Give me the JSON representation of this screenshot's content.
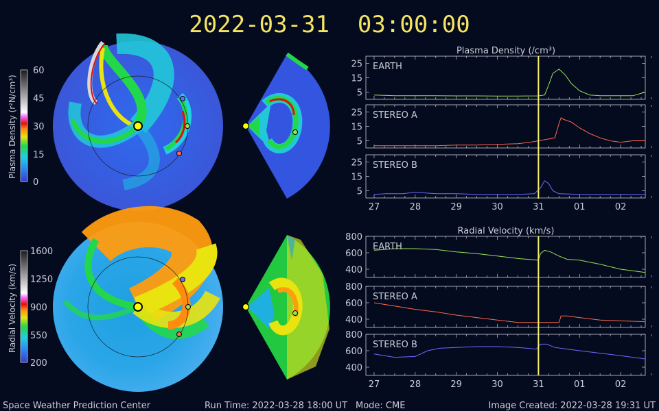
{
  "header": {
    "timestamp": "2022-03-31  03:00:00"
  },
  "colorbars": {
    "density": {
      "label": "Plasma Density (r²N/cm³)",
      "ticks": [
        "60",
        "45",
        "30",
        "15",
        "0"
      ]
    },
    "velocity": {
      "label": "Radial Velocity (km/s)",
      "ticks": [
        "1600",
        "1250",
        "900",
        "550",
        "200"
      ]
    }
  },
  "charts": {
    "density_title": "Plasma Density (/cm³)",
    "velocity_title": "Radial Velocity (km/s)"
  },
  "footer": {
    "center": "Space Weather Prediction Center",
    "run_time": "Run Time: 2022-03-28 18:00 UT",
    "mode": "Mode: CME",
    "created": "Image Created: 2022-03-28 19:31 UT"
  },
  "colors": {
    "earth": "#9be15a",
    "stereo_a": "#ff6a4d",
    "stereo_b": "#6a6cff",
    "marker": "#f4f06a",
    "title": "#f4e463"
  },
  "chart_data": [
    {
      "type": "line",
      "title": "Plasma Density (/cm³)",
      "panel": "EARTH",
      "x_ticks": [
        "27",
        "28",
        "29",
        "30",
        "31",
        "01",
        "02"
      ],
      "x": [
        0,
        0.5,
        1,
        1.5,
        2,
        2.5,
        3,
        3.5,
        4,
        4.15,
        4.25,
        4.35,
        4.5,
        4.65,
        4.8,
        5,
        5.25,
        5.5,
        5.75,
        6,
        6.3,
        6.6
      ],
      "y": [
        3,
        2.5,
        2.5,
        2.5,
        2.4,
        2.4,
        2.3,
        2.3,
        2.4,
        3,
        10,
        18,
        21,
        17,
        11,
        6,
        3,
        2.5,
        2.5,
        2.5,
        2.5,
        5
      ],
      "ylim": [
        0,
        30
      ],
      "yticks": [
        5,
        15,
        25
      ],
      "current_time_x": 4.0
    },
    {
      "type": "line",
      "panel": "STEREO A",
      "x_ticks": [
        "27",
        "28",
        "29",
        "30",
        "31",
        "01",
        "02"
      ],
      "x": [
        0,
        0.5,
        1,
        1.5,
        2,
        2.5,
        3,
        3.5,
        3.8,
        4,
        4.2,
        4.4,
        4.5,
        4.55,
        4.6,
        4.8,
        5,
        5.25,
        5.5,
        5.75,
        6,
        6.3,
        6.6
      ],
      "y": [
        1.5,
        1.5,
        1.5,
        1.5,
        2,
        2,
        2.5,
        3,
        4,
        5,
        6,
        7,
        17,
        21,
        20,
        18,
        14,
        10,
        7,
        5,
        4,
        5,
        5
      ],
      "ylim": [
        0,
        30
      ],
      "yticks": [
        5,
        15,
        25
      ]
    },
    {
      "type": "line",
      "panel": "STEREO B",
      "x_ticks": [
        "27",
        "28",
        "29",
        "30",
        "31",
        "01",
        "02"
      ],
      "x": [
        0,
        0.3,
        0.7,
        1,
        1.5,
        2,
        2.5,
        3,
        3.5,
        3.9,
        4.05,
        4.15,
        4.25,
        4.35,
        4.5,
        5,
        5.5,
        6,
        6.6
      ],
      "y": [
        2.5,
        3,
        3,
        4,
        3,
        3,
        2.5,
        2.5,
        2.5,
        3,
        7,
        12,
        10,
        5,
        3,
        2.5,
        2.5,
        2.5,
        2.5
      ],
      "ylim": [
        0,
        30
      ],
      "yticks": [
        5,
        15,
        25
      ]
    },
    {
      "type": "line",
      "title": "Radial Velocity (km/s)",
      "panel": "EARTH",
      "x_ticks": [
        "27",
        "28",
        "29",
        "30",
        "31",
        "01",
        "02"
      ],
      "x": [
        0,
        0.5,
        1,
        1.5,
        2,
        2.5,
        3,
        3.5,
        4,
        4.05,
        4.15,
        4.3,
        4.5,
        4.7,
        5,
        5.5,
        6,
        6.6
      ],
      "y": [
        630,
        650,
        650,
        640,
        610,
        590,
        560,
        530,
        510,
        590,
        630,
        610,
        560,
        520,
        510,
        460,
        400,
        360
      ],
      "ylim": [
        300,
        800
      ],
      "yticks": [
        400,
        600,
        800
      ]
    },
    {
      "type": "line",
      "panel": "STEREO A",
      "x_ticks": [
        "27",
        "28",
        "29",
        "30",
        "31",
        "01",
        "02"
      ],
      "x": [
        0,
        0.5,
        1,
        1.5,
        2,
        2.5,
        3,
        3.5,
        4,
        4.5,
        4.55,
        4.7,
        5,
        5.5,
        6,
        6.6
      ],
      "y": [
        600,
        560,
        520,
        490,
        450,
        420,
        390,
        360,
        360,
        360,
        440,
        440,
        420,
        390,
        380,
        370
      ],
      "ylim": [
        300,
        800
      ],
      "yticks": [
        400,
        600,
        800
      ]
    },
    {
      "type": "line",
      "panel": "STEREO B",
      "x_ticks": [
        "27",
        "28",
        "29",
        "30",
        "31",
        "01",
        "02"
      ],
      "x": [
        0,
        0.5,
        1,
        1.3,
        1.6,
        2,
        2.5,
        3,
        3.5,
        3.95,
        4.05,
        4.2,
        4.4,
        4.7,
        5,
        5.5,
        6,
        6.6
      ],
      "y": [
        560,
        520,
        530,
        600,
        630,
        640,
        650,
        650,
        640,
        620,
        680,
        680,
        640,
        620,
        600,
        570,
        540,
        500
      ],
      "ylim": [
        300,
        800
      ],
      "yticks": [
        400,
        600,
        800
      ]
    }
  ]
}
